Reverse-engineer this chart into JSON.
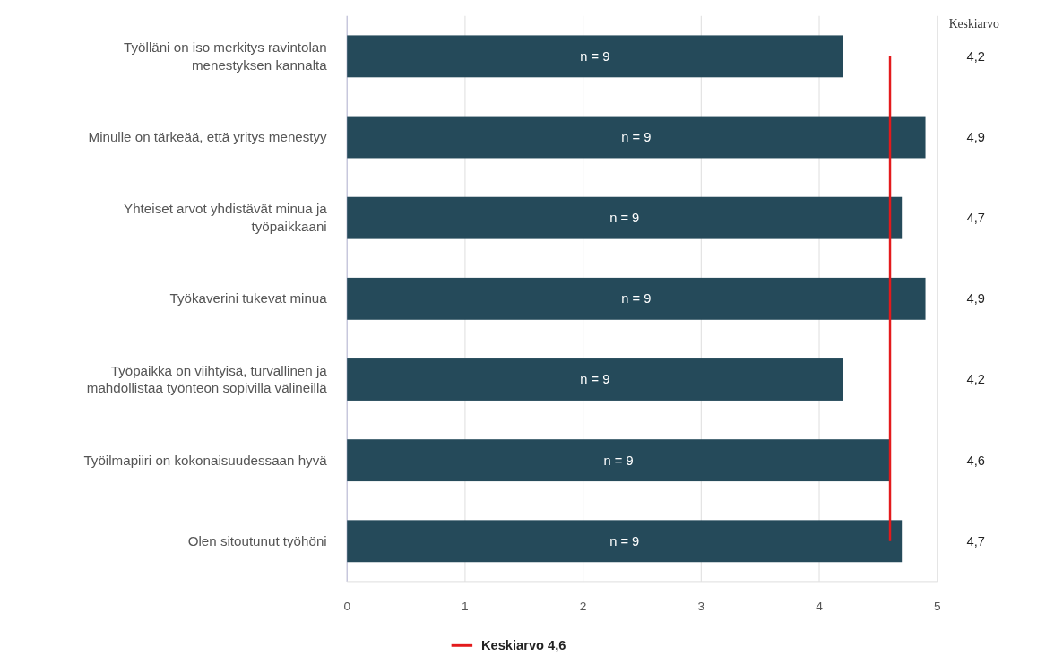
{
  "chart_data": {
    "type": "bar",
    "orientation": "horizontal",
    "categories": [
      "Työlläni on iso merkitys ravintolan menestyksen kannalta",
      "Minulle on tärkeää, että yritys menestyy",
      "Yhteiset arvot yhdistävät minua ja työpaikkaani",
      "Työkaverini tukevat minua",
      "Työpaikka on viihtyisä, turvallinen ja mahdollistaa työnteon sopivilla välineillä",
      "Työilmapiiri on kokonaisuudessaan hyvä",
      "Olen sitoutunut työhöni"
    ],
    "values": [
      4.2,
      4.9,
      4.7,
      4.9,
      4.2,
      4.6,
      4.7
    ],
    "value_labels": [
      "4,2",
      "4,9",
      "4,7",
      "4,9",
      "4,2",
      "4,6",
      "4,7"
    ],
    "color": "#254a5a",
    "xlim": [
      0,
      5
    ],
    "xticks": [
      0,
      1,
      2,
      3,
      4,
      5
    ],
    "grid": "x",
    "ref_lines": [
      {
        "axis": "x",
        "value": 4.6,
        "label": "Keskiarvo 4,6",
        "color": "#e31a1c"
      }
    ],
    "legend": "bottom",
    "annotations": [
      "Keskiarvo",
      "n = 9",
      "n = 9",
      "n = 9",
      "n = 9",
      "n = 9",
      "n = 9",
      "n = 9"
    ]
  }
}
